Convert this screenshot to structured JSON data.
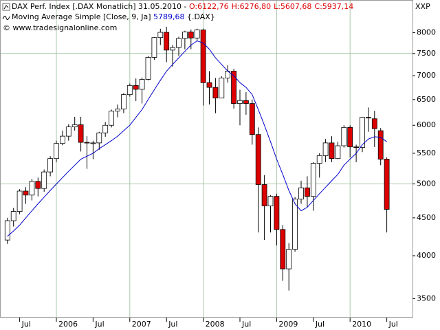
{
  "chart_data": {
    "type": "candlestick",
    "title": "DAX Perf. Index [.DAX  Monatlich] 31.05.2010 - ",
    "ohlc_label": [
      "O:6122,76",
      "H:6276,80",
      "L:5607,68",
      "C:5937,14"
    ],
    "ohlc_label_color": "#dd0000",
    "ma_label": "Moving Average Simple [Close, 9, Ja] ",
    "ma_value_label": "5789,68",
    "ma_suffix": " {.DAX}",
    "copyright": "© www.tradesignalonline.com",
    "corner_label": "XXP",
    "categories": [
      null,
      null,
      "Jul",
      null,
      null,
      null,
      null,
      null,
      "2006",
      null,
      null,
      null,
      null,
      null,
      "Jul",
      null,
      null,
      null,
      null,
      null,
      "2007",
      null,
      null,
      null,
      null,
      null,
      "Jul",
      null,
      null,
      null,
      null,
      null,
      "2008",
      null,
      null,
      null,
      null,
      null,
      "Jul",
      null,
      null,
      null,
      null,
      null,
      "2009",
      null,
      null,
      null,
      null,
      null,
      "Jul",
      null,
      null,
      null,
      null,
      null,
      "2010",
      null,
      null,
      null,
      null,
      null,
      "Jul"
    ],
    "open": [
      4200,
      4460,
      4590,
      4890,
      4830,
      5040,
      4930,
      5190,
      5410,
      5670,
      5800,
      5970,
      6010,
      5690,
      5680,
      5680,
      5860,
      6000,
      6270,
      6310,
      6600,
      6790,
      6710,
      6920,
      7410,
      7880,
      8010,
      7580,
      7640,
      7860,
      8020,
      7870,
      8070,
      6850,
      6750,
      6530,
      6950,
      7100,
      6420,
      6480,
      6420,
      5830,
      4990,
      4670,
      4810,
      4340,
      3840,
      4080,
      4770,
      4940,
      4810,
      5330,
      5460,
      5680,
      5410,
      5630,
      5960,
      5610,
      5600,
      6150,
      6123,
      5900,
      5400
    ],
    "high": [
      4500,
      4640,
      4920,
      4950,
      5080,
      5100,
      5230,
      5450,
      5720,
      5900,
      6020,
      6160,
      6160,
      5800,
      5720,
      5880,
      6060,
      6300,
      6400,
      6630,
      6830,
      6940,
      6960,
      7440,
      7890,
      8100,
      8150,
      7700,
      7900,
      8050,
      8080,
      8100,
      8100,
      7100,
      6950,
      6990,
      7230,
      7150,
      6700,
      6650,
      6500,
      5960,
      5140,
      4830,
      4850,
      4400,
      4160,
      4800,
      5050,
      5120,
      5350,
      5500,
      5750,
      5800,
      5700,
      6000,
      6000,
      5650,
      6160,
      6340,
      6277,
      5950,
      5430
    ],
    "low": [
      4150,
      4380,
      4550,
      4700,
      4750,
      4810,
      4880,
      5120,
      5350,
      5640,
      5720,
      5900,
      5530,
      5240,
      5400,
      5560,
      5790,
      5960,
      6150,
      6230,
      6560,
      6470,
      6420,
      6900,
      7350,
      7700,
      7300,
      7200,
      7450,
      7600,
      7600,
      7800,
      6380,
      6400,
      6230,
      6530,
      6850,
      6320,
      6000,
      6200,
      5650,
      4300,
      4200,
      4300,
      4130,
      3700,
      3590,
      4050,
      4700,
      4650,
      4600,
      5100,
      5350,
      5350,
      5400,
      5600,
      5430,
      5350,
      5520,
      5880,
      5608,
      5300,
      4300
    ],
    "close": [
      4460,
      4590,
      4890,
      4830,
      5040,
      4930,
      5190,
      5410,
      5670,
      5800,
      5970,
      6010,
      5690,
      5680,
      5680,
      5860,
      6000,
      6270,
      6310,
      6600,
      6790,
      6710,
      6920,
      7410,
      7880,
      8010,
      7580,
      7640,
      7860,
      8020,
      7870,
      8070,
      6850,
      6750,
      6530,
      6950,
      7100,
      6420,
      6480,
      6420,
      5830,
      4990,
      4670,
      4810,
      4340,
      3840,
      4080,
      4770,
      4940,
      4810,
      5330,
      5460,
      5680,
      5410,
      5630,
      5960,
      5610,
      5600,
      6150,
      6140,
      5937,
      5400,
      4620
    ],
    "up_color": "#ffffff",
    "down_color": "#dd0000",
    "ma": {
      "color": "#0000cc",
      "values": [
        4250,
        4320,
        4400,
        4500,
        4600,
        4700,
        4800,
        4900,
        5000,
        5100,
        5200,
        5300,
        5400,
        5450,
        5500,
        5580,
        5650,
        5720,
        5800,
        5900,
        6000,
        6150,
        6300,
        6500,
        6700,
        6900,
        7100,
        7250,
        7400,
        7550,
        7700,
        7800,
        7750,
        7600,
        7400,
        7250,
        7100,
        7000,
        6850,
        6750,
        6600,
        6300,
        6000,
        5700,
        5400,
        5150,
        4900,
        4700,
        4600,
        4650,
        4750,
        4850,
        4950,
        5050,
        5150,
        5300,
        5400,
        5500,
        5650,
        5750,
        5790,
        5780,
        5700
      ]
    },
    "ylim": [
      3300,
      8450
    ],
    "log_y": true,
    "yticks": [
      3500,
      4000,
      4500,
      5000,
      5500,
      6000,
      6500,
      7000,
      7500,
      8000
    ],
    "ygrid": [
      5000,
      7500
    ],
    "xgrid": [
      8,
      20,
      32,
      44,
      56
    ]
  }
}
